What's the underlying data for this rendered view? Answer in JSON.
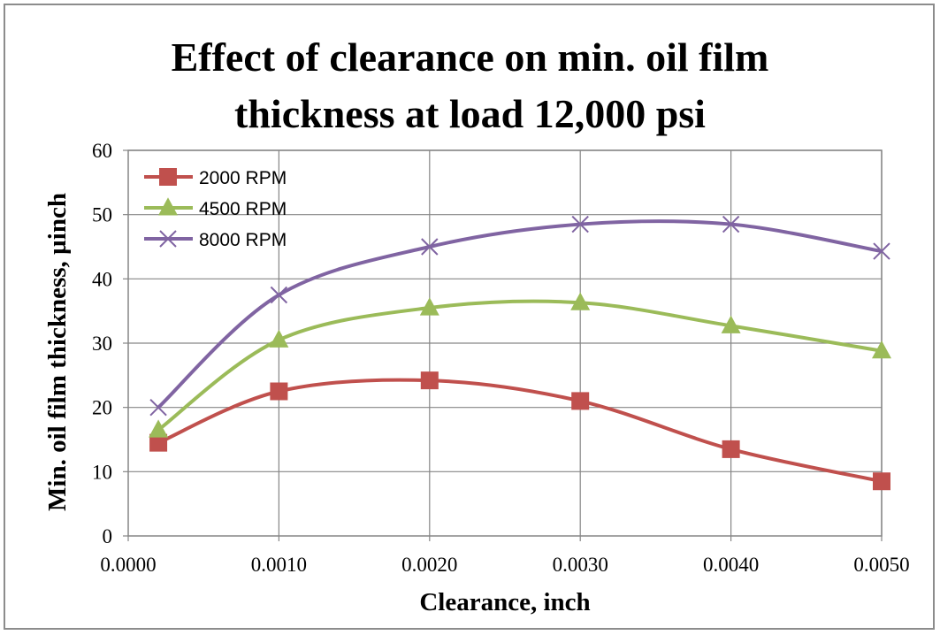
{
  "chart_data": {
    "type": "line",
    "title": [
      "Effect of clearance on min. oil film",
      "thickness at load 12,000 psi"
    ],
    "xlabel": "Clearance, inch",
    "ylabel": "Min. oil film thickness, µinch",
    "xlim": [
      0,
      0.005
    ],
    "ylim": [
      0,
      60
    ],
    "xticks": [
      "0.0000",
      "0.0010",
      "0.0020",
      "0.0030",
      "0.0040",
      "0.0050"
    ],
    "yticks": [
      "0",
      "10",
      "20",
      "30",
      "40",
      "50",
      "60"
    ],
    "grid": true,
    "legend_position": "top-left",
    "x": [
      0.0002,
      0.001,
      0.002,
      0.003,
      0.004,
      0.005
    ],
    "series": [
      {
        "name": "2000 RPM",
        "values": [
          14.5,
          22.5,
          24.2,
          21.0,
          13.5,
          8.5
        ],
        "color": "#c0504d",
        "marker": "square"
      },
      {
        "name": "4500 RPM",
        "values": [
          16.5,
          30.5,
          35.5,
          36.3,
          32.7,
          28.8
        ],
        "color": "#9bbb59",
        "marker": "triangle"
      },
      {
        "name": "8000 RPM",
        "values": [
          20.0,
          37.5,
          45.0,
          48.5,
          48.5,
          44.3
        ],
        "color": "#8064a2",
        "marker": "x"
      }
    ]
  }
}
